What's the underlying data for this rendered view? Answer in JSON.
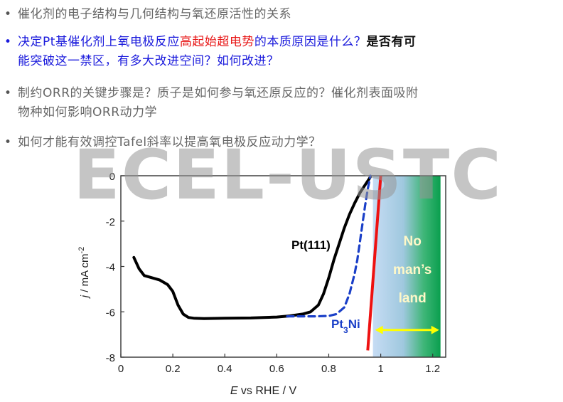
{
  "bullets": [
    {
      "segments": [
        {
          "text": "催化剂的电子结构与几何结构与氧还原活性的关系",
          "color": "gray"
        }
      ]
    },
    {
      "segments": [
        {
          "text": "决定Pt基催化剂上氧电极反应",
          "color": "blue"
        },
        {
          "text": "高起始超电势",
          "color": "red"
        },
        {
          "text": "的本质原因是什么？",
          "color": "blue"
        },
        {
          "text": "是否有可",
          "color": "black"
        }
      ],
      "line2": [
        {
          "text": "能突破这一禁区，有多大改进空间？如何改进？",
          "color": "blue"
        }
      ]
    },
    {
      "segments": [
        {
          "text": "制约ORR的关键步骤是？质子是如何参与氧还原反应的？催化剂表面吸附",
          "color": "gray"
        }
      ],
      "line2": [
        {
          "text": "物种如何影响ORR动力学",
          "color": "gray"
        }
      ]
    },
    {
      "segments": [
        {
          "text": "如何才能有效调控Tafel斜率以提高氧电极反应动力学？",
          "color": "gray"
        }
      ]
    }
  ],
  "watermark": "ECEL-USTC",
  "chart_data": {
    "type": "line",
    "xlabel_parts": [
      {
        "text": "E",
        "italic": true
      },
      {
        "text": " vs RHE / V",
        "italic": false
      }
    ],
    "ylabel_parts": [
      {
        "text": "j",
        "italic": true
      },
      {
        "text": " / mA cm",
        "italic": false
      },
      {
        "text": "-2",
        "sup": true
      }
    ],
    "xlim": [
      0,
      1.25
    ],
    "ylim": [
      -8,
      0
    ],
    "xticks": [
      "0",
      "0.2",
      "0.4",
      "0.6",
      "0.8",
      "1",
      "1.2"
    ],
    "xtick_values": [
      0,
      0.2,
      0.4,
      0.6,
      0.8,
      1.0,
      1.2
    ],
    "yticks": [
      "0",
      "-2",
      "-4",
      "-6",
      "-8"
    ],
    "ytick_values": [
      0,
      -2,
      -4,
      -6,
      -8
    ],
    "series": [
      {
        "name": "Pt(111)",
        "color": "#000000",
        "style": "solid",
        "x": [
          0.05,
          0.07,
          0.09,
          0.12,
          0.15,
          0.18,
          0.2,
          0.22,
          0.24,
          0.26,
          0.28,
          0.32,
          0.4,
          0.5,
          0.6,
          0.65,
          0.7,
          0.73,
          0.76,
          0.78,
          0.8,
          0.82,
          0.84,
          0.86,
          0.88,
          0.9,
          0.92,
          0.94,
          0.955,
          0.96
        ],
        "y": [
          -3.6,
          -4.1,
          -4.4,
          -4.5,
          -4.6,
          -4.8,
          -5.1,
          -5.7,
          -6.1,
          -6.25,
          -6.28,
          -6.3,
          -6.28,
          -6.27,
          -6.23,
          -6.18,
          -6.1,
          -6.0,
          -5.7,
          -5.2,
          -4.5,
          -3.7,
          -3.0,
          -2.3,
          -1.7,
          -1.2,
          -0.75,
          -0.4,
          -0.15,
          -0.05
        ]
      },
      {
        "name": "Pt3Ni",
        "label_parts": [
          {
            "text": "Pt"
          },
          {
            "text": "3",
            "sub": true
          },
          {
            "text": "Ni"
          }
        ],
        "color": "#1a3fc8",
        "style": "dashed",
        "x": [
          0.64,
          0.7,
          0.75,
          0.8,
          0.83,
          0.86,
          0.88,
          0.9,
          0.91,
          0.92,
          0.93,
          0.94,
          0.95,
          0.96
        ],
        "y": [
          -6.2,
          -6.2,
          -6.2,
          -6.18,
          -6.1,
          -5.8,
          -5.2,
          -4.3,
          -3.7,
          -2.9,
          -2.1,
          -1.3,
          -0.6,
          0.0
        ]
      }
    ],
    "equilibrium_line": {
      "x": [
        0.95,
        1.0
      ],
      "y": [
        -7.7,
        0.0
      ],
      "color": "#ee1111"
    },
    "no_mans_land": {
      "x_start": 0.97,
      "x_end": 1.23,
      "text": [
        "No",
        "man’s",
        "land"
      ]
    },
    "arrow": {
      "x_from": 0.97,
      "x_to": 1.23,
      "y": -6.8,
      "color": "#ffff00"
    }
  }
}
